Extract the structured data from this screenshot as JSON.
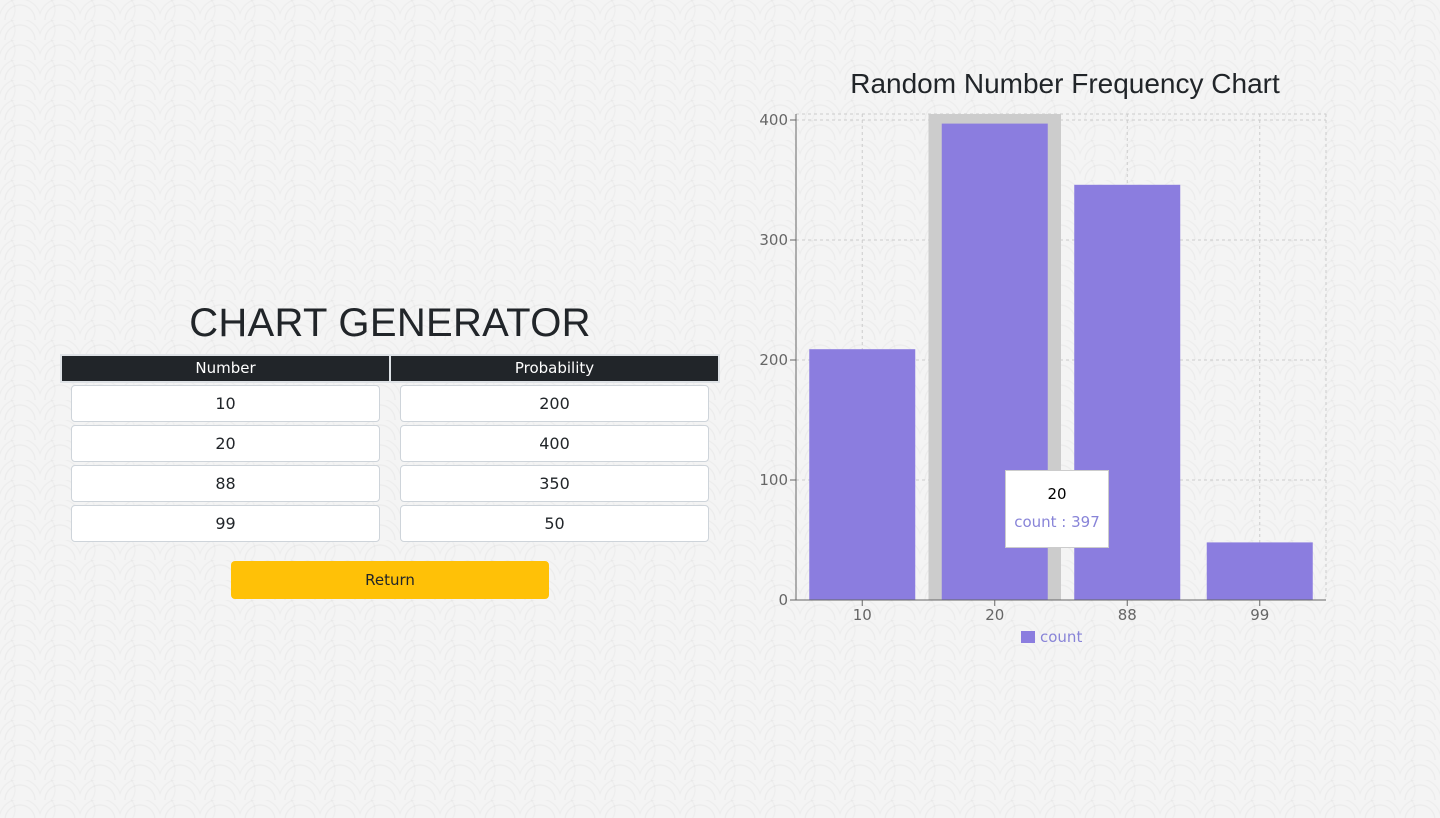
{
  "page": {
    "title": "CHART GENERATOR"
  },
  "table": {
    "headers": [
      "Number",
      "Probability"
    ],
    "rows": [
      {
        "number": "10",
        "probability": "200"
      },
      {
        "number": "20",
        "probability": "400"
      },
      {
        "number": "88",
        "probability": "350"
      },
      {
        "number": "99",
        "probability": "50"
      }
    ]
  },
  "actions": {
    "return_label": "Return"
  },
  "colors": {
    "bar": "#8b7ddf",
    "cursor": "#cccccc",
    "accent_button": "#ffc107",
    "table_header": "#212529"
  },
  "tooltip": {
    "label": "20",
    "item": "count : 397"
  },
  "chart_data": {
    "type": "bar",
    "title": "Random Number Frequency Chart",
    "categories": [
      "10",
      "20",
      "88",
      "99"
    ],
    "series": [
      {
        "name": "count",
        "values": [
          209,
          397,
          346,
          48
        ]
      }
    ],
    "ylim": [
      0,
      400
    ],
    "yticks": [
      0,
      100,
      200,
      300,
      400
    ],
    "grid": true,
    "legend": "bottom-center",
    "highlighted_category": "20",
    "xlabel": "",
    "ylabel": ""
  }
}
